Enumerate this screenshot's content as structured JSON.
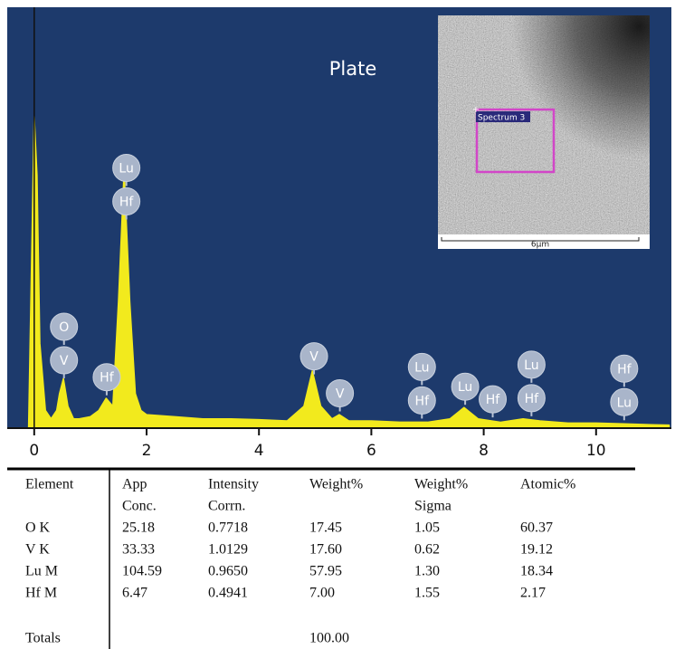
{
  "chart_data": {
    "type": "area",
    "title": "Plate",
    "x": [
      -0.1,
      0,
      0.05,
      0.1,
      0.2,
      0.3,
      0.4,
      0.45,
      0.52,
      0.6,
      0.7,
      0.8,
      1.0,
      1.15,
      1.28,
      1.4,
      1.5,
      1.6,
      1.7,
      1.8,
      1.9,
      2.0,
      2.5,
      3.0,
      3.5,
      4.0,
      4.5,
      4.8,
      4.95,
      5.1,
      5.3,
      5.43,
      5.6,
      6.0,
      6.5,
      7.0,
      7.4,
      7.65,
      7.9,
      8.3,
      8.7,
      9.0,
      9.5,
      10.0,
      10.5,
      11.0,
      11.3
    ],
    "values": [
      0,
      74,
      60,
      20,
      4,
      2,
      4,
      8,
      11.6,
      5,
      2,
      2,
      2.5,
      4,
      6.9,
      5,
      30,
      61,
      30,
      8,
      4,
      3,
      2.5,
      2,
      2,
      1.8,
      1.5,
      5,
      13.4,
      5,
      2,
      3,
      1.5,
      1.5,
      1.2,
      1.2,
      2,
      4.7,
      2,
      1.2,
      2,
      1.5,
      1,
      1,
      0.8,
      0.6,
      0.5
    ],
    "color": "#f2ea1d",
    "background": "#1d3a6c",
    "xlim": [
      -0.48,
      11.34
    ],
    "ylim": [
      0,
      100
    ],
    "xticks": [
      0,
      2,
      4,
      6,
      8,
      10
    ],
    "peak_labels": [
      {
        "x": 0.53,
        "labels": [
          "O",
          "V"
        ]
      },
      {
        "x": 1.29,
        "labels": [
          "Hf"
        ]
      },
      {
        "x": 1.64,
        "labels": [
          "Lu",
          "Hf"
        ]
      },
      {
        "x": 4.98,
        "labels": [
          "V"
        ]
      },
      {
        "x": 5.44,
        "labels": [
          "V"
        ]
      },
      {
        "x": 6.9,
        "labels": [
          "Lu",
          "Hf"
        ]
      },
      {
        "x": 7.67,
        "labels": [
          "Lu"
        ]
      },
      {
        "x": 8.16,
        "labels": [
          "Hf"
        ]
      },
      {
        "x": 8.85,
        "labels": [
          "Lu",
          "Hf"
        ]
      },
      {
        "x": 10.5,
        "labels": [
          "Hf",
          "Lu"
        ]
      }
    ]
  },
  "inset": {
    "label": "Spectrum 3",
    "scale_bar": "6µm"
  },
  "table": {
    "header": [
      [
        "Element"
      ],
      [
        "App",
        "Conc."
      ],
      [
        "Intensity",
        "Corrn."
      ],
      [
        "Weight%"
      ],
      [
        "Weight%",
        "Sigma"
      ],
      [
        "Atomic%"
      ]
    ],
    "rows": [
      [
        "O K",
        "25.18",
        "0.7718",
        "17.45",
        "1.05",
        "60.37"
      ],
      [
        "V K",
        "33.33",
        "1.0129",
        "17.60",
        "0.62",
        "19.12"
      ],
      [
        "Lu M",
        "104.59",
        "0.9650",
        "57.95",
        "1.30",
        "18.34"
      ],
      [
        "Hf M",
        "6.47",
        "0.4941",
        "7.00",
        "1.55",
        "2.17"
      ]
    ],
    "totals": {
      "label": "Totals",
      "value": "100.00"
    }
  }
}
